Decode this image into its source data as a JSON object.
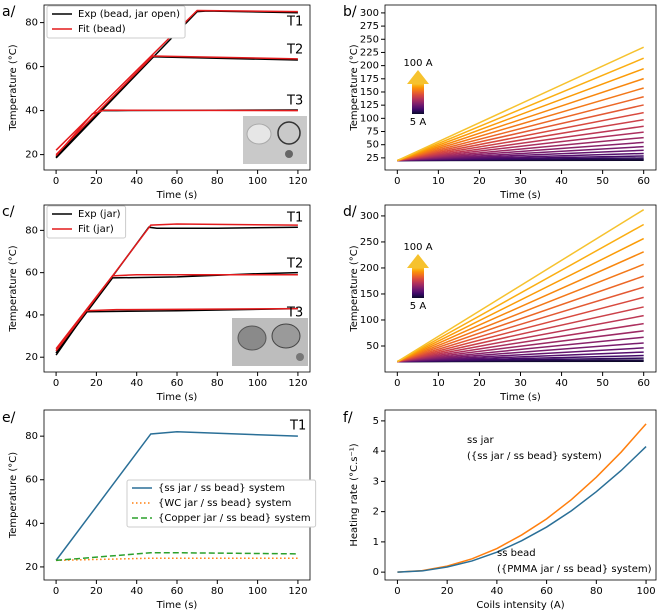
{
  "chart_data": [
    {
      "type": "line",
      "title": "a/",
      "xlabel": "Time (s)",
      "ylabel": "Temperature (°C)",
      "xlim": [
        -6,
        126
      ],
      "ylim": [
        13,
        88
      ],
      "xticks": [
        0,
        20,
        40,
        60,
        80,
        100,
        120
      ],
      "yticks": [
        20,
        40,
        60,
        80
      ],
      "legend": "upper left",
      "series": [
        {
          "name": "Exp (bead, jar open)",
          "color": "#000000",
          "lines": [
            {
              "x": [
                0,
                70,
                75,
                120
              ],
              "values": [
                18.5,
                85,
                85.3,
                84.5
              ]
            },
            {
              "x": [
                0,
                48,
                55,
                120
              ],
              "values": [
                18.5,
                64.5,
                64.3,
                63
              ]
            },
            {
              "x": [
                0,
                22,
                30,
                120
              ],
              "values": [
                19,
                40,
                40,
                40.3
              ]
            }
          ]
        },
        {
          "name": "Fit (bead)",
          "color": "#e31a1c",
          "lines": [
            {
              "x": [
                0,
                70,
                120
              ],
              "values": [
                22,
                85.5,
                85
              ]
            },
            {
              "x": [
                0,
                48,
                120
              ],
              "values": [
                20,
                64.8,
                63.5
              ]
            },
            {
              "x": [
                0,
                18,
                24,
                120
              ],
              "values": [
                19.5,
                38.5,
                40.2,
                40
              ]
            }
          ]
        }
      ],
      "annotations": [
        {
          "text": "T1",
          "color": "#000000"
        },
        {
          "text": "T2",
          "color": "#000000"
        },
        {
          "text": "T3",
          "color": "#000000"
        }
      ]
    },
    {
      "type": "line",
      "title": "b/",
      "ylabel": "Temperature (°C)",
      "xlabel": "Time (s)",
      "xlim": [
        -3,
        63
      ],
      "ylim": [
        2,
        315
      ],
      "xticks": [
        0,
        10,
        20,
        30,
        40,
        50,
        60
      ],
      "yticks": [
        25,
        50,
        75,
        100,
        125,
        150,
        175,
        200,
        225,
        250,
        275,
        300
      ],
      "colorbar": {
        "top": "100 A",
        "bottom": "5 A"
      },
      "x": [
        0,
        60
      ],
      "series": [
        {
          "color": "#0d0829",
          "values": [
            20,
            20.5
          ]
        },
        {
          "color": "#1b0c41",
          "values": [
            20,
            22.2
          ]
        },
        {
          "color": "#2f0a5b",
          "values": [
            20,
            24.8
          ]
        },
        {
          "color": "#420a68",
          "values": [
            20,
            28.6
          ]
        },
        {
          "color": "#55106d",
          "values": [
            20,
            33.4
          ]
        },
        {
          "color": "#65156e",
          "values": [
            20,
            39.4
          ]
        },
        {
          "color": "#781c6d",
          "values": [
            20,
            46.3
          ]
        },
        {
          "color": "#89226a",
          "values": [
            20,
            54.4
          ]
        },
        {
          "color": "#9b2964",
          "values": [
            20,
            63.5
          ]
        },
        {
          "color": "#ac2f5e",
          "values": [
            20,
            73.8
          ]
        },
        {
          "color": "#bc3754",
          "values": [
            20,
            85.0
          ]
        },
        {
          "color": "#cb4149",
          "values": [
            20,
            97.4
          ]
        },
        {
          "color": "#d8493e",
          "values": [
            20,
            110.8
          ]
        },
        {
          "color": "#e35933",
          "values": [
            20,
            125.4
          ]
        },
        {
          "color": "#ec6726",
          "values": [
            20,
            140.9
          ]
        },
        {
          "color": "#f37819",
          "values": [
            20,
            157.6
          ]
        },
        {
          "color": "#f8870e",
          "values": [
            20,
            175.3
          ]
        },
        {
          "color": "#fb9b06",
          "values": [
            20,
            194.2
          ]
        },
        {
          "color": "#fbae12",
          "values": [
            20,
            214.0
          ]
        },
        {
          "color": "#f6c22e",
          "values": [
            20,
            235.0
          ]
        }
      ]
    },
    {
      "type": "line",
      "title": "c/",
      "xlabel": "Time (s)",
      "ylabel": "Temperature (°C)",
      "xlim": [
        -6,
        126
      ],
      "ylim": [
        13,
        92
      ],
      "xticks": [
        0,
        20,
        40,
        60,
        80,
        100,
        120
      ],
      "yticks": [
        20,
        40,
        60,
        80
      ],
      "legend": "upper left",
      "series": [
        {
          "name": "Exp (jar)",
          "color": "#000000",
          "lines": [
            {
              "x": [
                0,
                46,
                50,
                80,
                120
              ],
              "values": [
                22,
                81.5,
                81,
                81,
                81.5
              ]
            },
            {
              "x": [
                0,
                28,
                60,
                100,
                120
              ],
              "values": [
                22,
                57.5,
                58,
                59.5,
                60
              ]
            },
            {
              "x": [
                0,
                15,
                60,
                120
              ],
              "values": [
                21,
                41.5,
                42,
                43
              ]
            }
          ]
        },
        {
          "name": "Fit (jar)",
          "color": "#e31a1c",
          "lines": [
            {
              "x": [
                0,
                47,
                60,
                120
              ],
              "values": [
                23,
                82.5,
                83,
                82.5
              ]
            },
            {
              "x": [
                0,
                28,
                40,
                120
              ],
              "values": [
                24,
                58.5,
                59,
                59
              ]
            },
            {
              "x": [
                0,
                15,
                30,
                120
              ],
              "values": [
                23,
                42,
                42.5,
                43
              ]
            }
          ]
        }
      ],
      "annotations": [
        {
          "text": "T1",
          "color": "#000000"
        },
        {
          "text": "T2",
          "color": "#000000"
        },
        {
          "text": "T3",
          "color": "#000000"
        }
      ]
    },
    {
      "type": "line",
      "title": "d/",
      "ylabel": "Temperature (°C)",
      "xlabel": "Time (s)",
      "xlim": [
        -3,
        63
      ],
      "ylim": [
        0,
        321
      ],
      "xticks": [
        0,
        10,
        20,
        30,
        40,
        50,
        60
      ],
      "yticks": [
        50,
        100,
        150,
        200,
        250,
        300
      ],
      "colorbar": {
        "top": "100 A",
        "bottom": "5 A"
      },
      "x": [
        0,
        60
      ],
      "series": [
        {
          "color": "#0d0829",
          "values": [
            20,
            20.7
          ]
        },
        {
          "color": "#1b0c41",
          "values": [
            20,
            22.9
          ]
        },
        {
          "color": "#2f0a5b",
          "values": [
            20,
            26.6
          ]
        },
        {
          "color": "#420a68",
          "values": [
            20,
            31.7
          ]
        },
        {
          "color": "#55106d",
          "values": [
            20,
            38.3
          ]
        },
        {
          "color": "#65156e",
          "values": [
            20,
            46.3
          ]
        },
        {
          "color": "#781c6d",
          "values": [
            20,
            55.8
          ]
        },
        {
          "color": "#89226a",
          "values": [
            20,
            66.7
          ]
        },
        {
          "color": "#9b2964",
          "values": [
            20,
            79.1
          ]
        },
        {
          "color": "#ac2f5e",
          "values": [
            20,
            93.0
          ]
        },
        {
          "color": "#bc3754",
          "values": [
            20,
            108.3
          ]
        },
        {
          "color": "#cb4149",
          "values": [
            20,
            125.1
          ]
        },
        {
          "color": "#d8493e",
          "values": [
            20,
            143.4
          ]
        },
        {
          "color": "#e35933",
          "values": [
            20,
            163.1
          ]
        },
        {
          "color": "#ec6726",
          "values": [
            20,
            184.3
          ]
        },
        {
          "color": "#f37819",
          "values": [
            20,
            206.9
          ]
        },
        {
          "color": "#f8870e",
          "values": [
            20,
            231.0
          ]
        },
        {
          "color": "#fb9b06",
          "values": [
            20,
            256.5
          ]
        },
        {
          "color": "#fbae12",
          "values": [
            20,
            283.5
          ]
        },
        {
          "color": "#f6c22e",
          "values": [
            20,
            312.0
          ]
        }
      ]
    },
    {
      "type": "line",
      "title": "e/",
      "xlabel": "Time (s)",
      "ylabel": "Temperature (°C)",
      "xlim": [
        -6,
        126
      ],
      "ylim": [
        14,
        92
      ],
      "xticks": [
        0,
        20,
        40,
        60,
        80,
        100,
        120
      ],
      "yticks": [
        20,
        40,
        60,
        80
      ],
      "legend": "center right",
      "x": [
        0,
        47,
        60,
        120
      ],
      "series": [
        {
          "name": "{ss jar / ss bead} system",
          "color": "#2a6f97",
          "dash": "solid",
          "values": [
            23,
            81,
            82,
            80
          ]
        },
        {
          "name": "{WC jar / ss bead} system",
          "color": "#ff7f0e",
          "dash": "dotted",
          "values": [
            23,
            24,
            24,
            24
          ]
        },
        {
          "name": "{Copper jar / ss bead} system",
          "color": "#2ca02c",
          "dash": "dashed",
          "values": [
            23,
            26.5,
            26.5,
            26
          ]
        }
      ],
      "annotations": [
        {
          "text": "T1",
          "color": "#000000"
        }
      ]
    },
    {
      "type": "line",
      "title": "f/",
      "xlabel": "Coils intensity (A)",
      "ylabel": "Heating rate (°C.s⁻¹)",
      "xlim": [
        -5,
        104
      ],
      "ylim": [
        -0.26,
        5.36
      ],
      "xticks": [
        0,
        20,
        40,
        60,
        80,
        100
      ],
      "yticks": [
        0,
        1,
        2,
        3,
        4,
        5
      ],
      "x": [
        0,
        10,
        20,
        30,
        40,
        50,
        60,
        70,
        80,
        90,
        100
      ],
      "series": [
        {
          "color": "#ff7f0e",
          "values": [
            0,
            0.05,
            0.2,
            0.44,
            0.78,
            1.23,
            1.76,
            2.4,
            3.14,
            3.97,
            4.9
          ]
        },
        {
          "color": "#2a6f97",
          "values": [
            0,
            0.04,
            0.17,
            0.37,
            0.66,
            1.04,
            1.49,
            2.03,
            2.66,
            3.36,
            4.15
          ]
        }
      ],
      "annotations": [
        {
          "text": "ss jar",
          "color": "#ff7f0e"
        },
        {
          "text": "({ss jar / ss bead} system)",
          "color": "#ff7f0e"
        },
        {
          "text": "ss bead",
          "color": "#2a6f97"
        },
        {
          "text": "({PMMA jar / ss bead} system)",
          "color": "#2a6f97"
        }
      ]
    }
  ]
}
